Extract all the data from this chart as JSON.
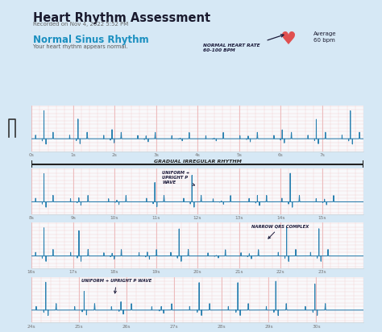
{
  "title": "Heart Rhythm Assessment",
  "subtitle": "Recorded on Nov 4, 2022 5:52 PM",
  "rhythm_label": "Normal Sinus Rhythm",
  "rhythm_desc": "Your heart rhythm appears normal.",
  "average_label": "Average\n60 bpm",
  "annotation1": "NORMAL HEART RATE\n60-100 BPM",
  "annotation2": "UNIFORM +\nUPRIGHT P\nWAVE",
  "annotation3": "GRADUAL IRREGULAR RHYTHM",
  "annotation4": "NARROW QRS COMPLEX",
  "annotation5": "UNIFORM + UPRIGHT P WAVE",
  "bg_outer": "#d6e8f5",
  "bg_card": "#ffffff",
  "grid_minor_color": "#f2c8c8",
  "grid_major_color": "#e8a8a8",
  "ecg_color": "#2980b0",
  "rhythm_label_color": "#1a8fc0",
  "heart_color": "#e05050",
  "annotation_color": "#1a1a3a",
  "bar_color": "#2a2a2a",
  "tick_color": "#777777",
  "title_color": "#1a1a2e",
  "subtitle_color": "#666666",
  "desc_color": "#555555"
}
